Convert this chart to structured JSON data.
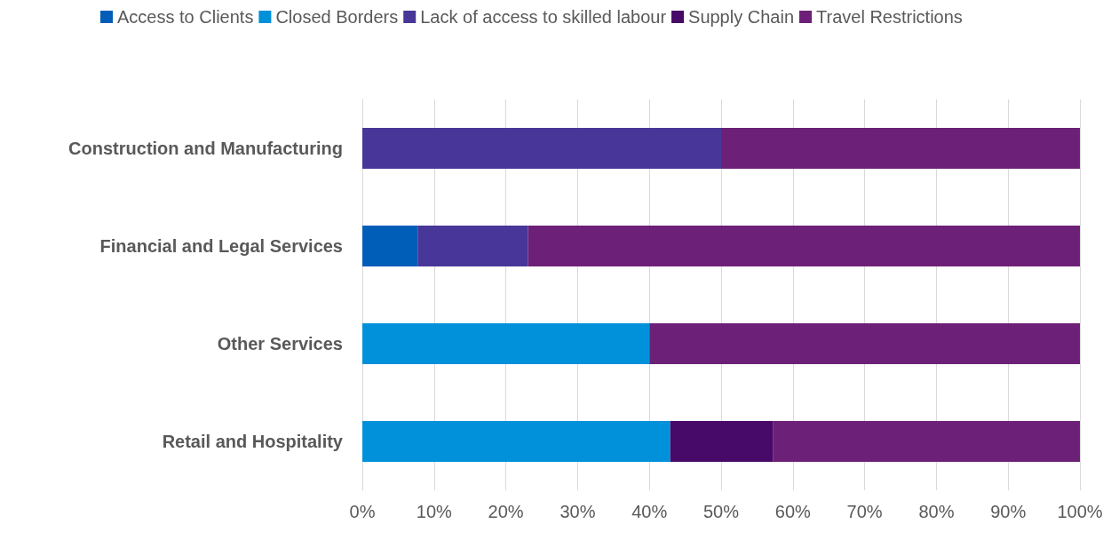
{
  "chart_data": {
    "type": "bar",
    "orientation": "horizontal",
    "stacked": true,
    "categories": [
      "Construction and Manufacturing",
      "Financial and Legal Services",
      "Other Services",
      "Retail and Hospitality"
    ],
    "series": [
      {
        "name": "Access to Clients",
        "color": "#005eb8",
        "values": [
          null,
          7.7,
          null,
          null
        ]
      },
      {
        "name": "Closed Borders",
        "color": "#0091da",
        "values": [
          null,
          null,
          40,
          42.9
        ]
      },
      {
        "name": "Lack of access to skilled labour",
        "color": "#483698",
        "values": [
          50,
          15.4,
          null,
          null
        ]
      },
      {
        "name": "Supply Chain",
        "color": "#470a68",
        "values": [
          null,
          null,
          null,
          14.3
        ]
      },
      {
        "name": "Travel Restrictions",
        "color": "#6d2077",
        "values": [
          50,
          76.9,
          60,
          42.8
        ]
      }
    ],
    "xlim": [
      0,
      100
    ],
    "xticks": [
      {
        "value": 0,
        "label": "0%"
      },
      {
        "value": 10,
        "label": "10%"
      },
      {
        "value": 20,
        "label": "20%"
      },
      {
        "value": 30,
        "label": "30%"
      },
      {
        "value": 40,
        "label": "40%"
      },
      {
        "value": 50,
        "label": "50%"
      },
      {
        "value": 60,
        "label": "60%"
      },
      {
        "value": 70,
        "label": "70%"
      },
      {
        "value": 80,
        "label": "80%"
      },
      {
        "value": 90,
        "label": "90%"
      },
      {
        "value": 100,
        "label": "100%"
      }
    ],
    "grid": "x",
    "legend": "top"
  }
}
